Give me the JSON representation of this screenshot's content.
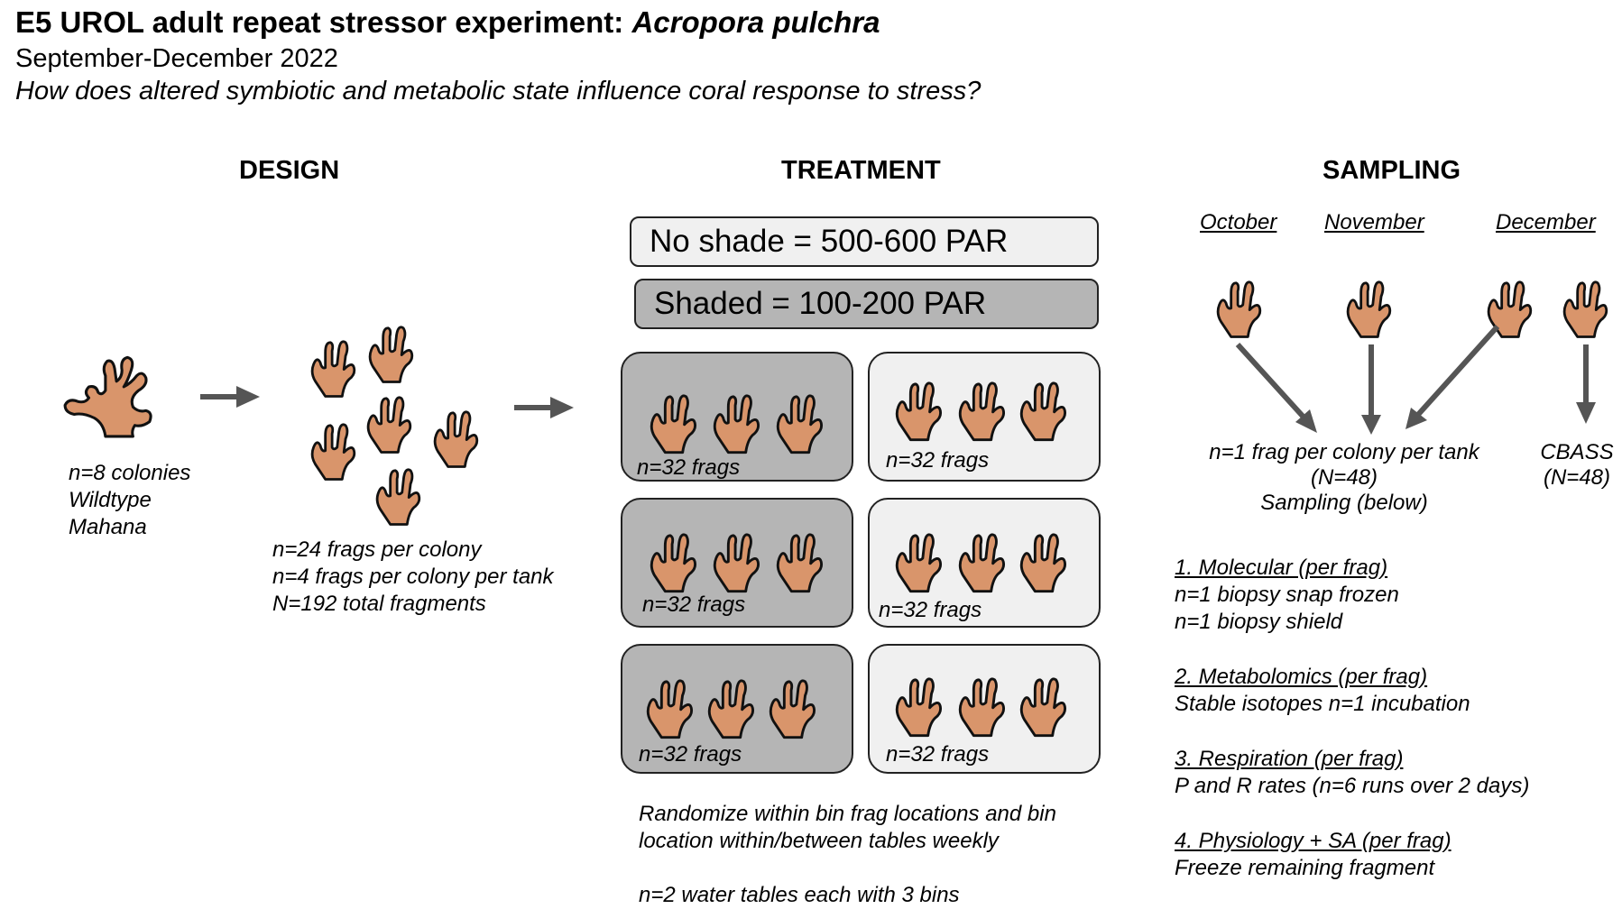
{
  "header": {
    "title_prefix": "E5 UROL adult repeat stressor experiment: ",
    "title_species": "Acropora pulchra",
    "dates": "September-December 2022",
    "question": "How does altered symbiotic and metabolic state influence coral response to stress?"
  },
  "design": {
    "heading": "DESIGN",
    "colonies": [
      "n=8 colonies",
      "Wildtype",
      "Mahana"
    ],
    "frags": [
      "n=24 frags per colony",
      "n=4 frags per colony per tank",
      "N=192 total fragments"
    ]
  },
  "treatment": {
    "heading": "TREATMENT",
    "no_shade": "No shade = 500-600 PAR",
    "shaded": "Shaded = 100-200 PAR",
    "bins": [
      {
        "label": "n=32 frags",
        "shade": "shaded"
      },
      {
        "label": "n=32 frags",
        "shade": "no-shade"
      },
      {
        "label": "n=32 frags",
        "shade": "shaded"
      },
      {
        "label": "n=32 frags",
        "shade": "no-shade"
      },
      {
        "label": "n=32 frags",
        "shade": "shaded"
      },
      {
        "label": "n=32 frags",
        "shade": "no-shade"
      }
    ],
    "randomize": [
      "Randomize within bin frag locations and bin",
      "location within/between tables weekly"
    ],
    "water_tables": "n=2 water tables each with 3 bins"
  },
  "sampling": {
    "heading": "SAMPLING",
    "months": [
      "October",
      "November",
      "December"
    ],
    "main_lines": [
      "n=1 frag per colony per tank",
      "(N=48)",
      "Sampling (below)"
    ],
    "cbass_lines": [
      "CBASS",
      "(N=48)"
    ],
    "items": [
      {
        "title": "1. Molecular (per frag)",
        "lines": [
          "n=1 biopsy snap frozen",
          "n=1 biopsy shield"
        ]
      },
      {
        "title": "2. Metabolomics (per frag)",
        "lines": [
          "Stable isotopes n=1 incubation"
        ]
      },
      {
        "title": "3. Respiration (per frag)",
        "lines": [
          "P and R rates (n=6 runs over 2 days)"
        ]
      },
      {
        "title": "4. Physiology + SA (per frag)",
        "lines": [
          "Freeze remaining fragment"
        ]
      }
    ]
  },
  "colors": {
    "coral_fill": "#d9956b",
    "shaded_bin": "#b5b5b5",
    "unshaded_bin": "#f0f0f0",
    "arrow": "#555555"
  }
}
